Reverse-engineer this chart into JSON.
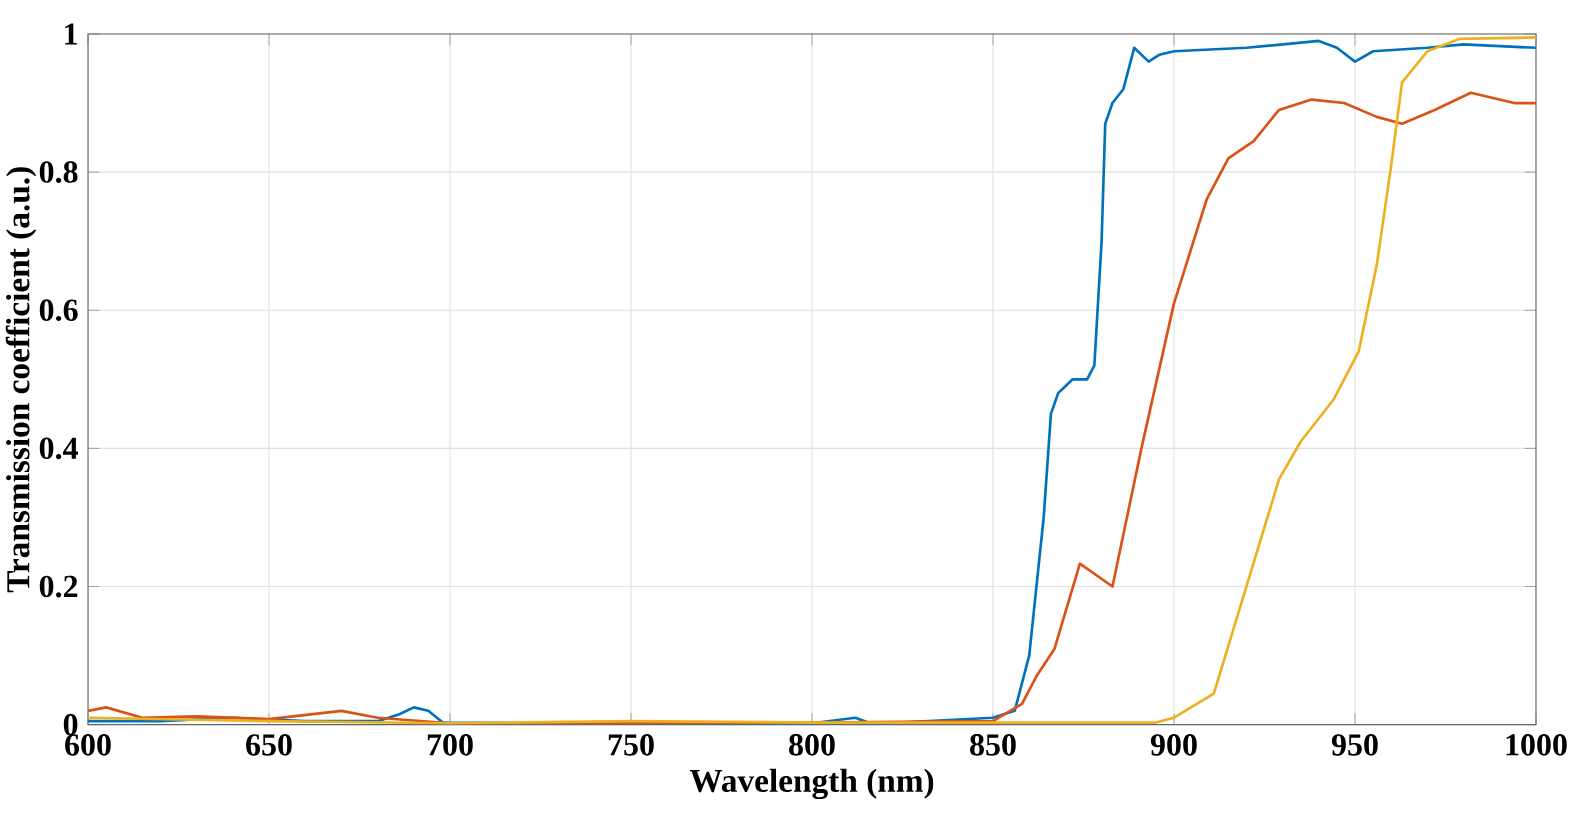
{
  "chart_data": {
    "type": "line",
    "xlabel": "Wavelength (nm)",
    "ylabel": "Transmission coefficient (a.u.)",
    "xlim": [
      600,
      1000
    ],
    "ylim": [
      0,
      1
    ],
    "xticks": [
      600,
      650,
      700,
      750,
      800,
      850,
      900,
      950,
      1000
    ],
    "yticks": [
      0,
      0.2,
      0.4,
      0.6,
      0.8,
      1
    ],
    "grid": true,
    "legend": false,
    "marker": "none",
    "line_style": "solid",
    "series": [
      {
        "color": "#0072bd",
        "x": [
          600,
          620,
          640,
          660,
          680,
          686,
          690,
          694,
          698,
          720,
          800,
          812,
          816,
          820,
          850,
          856,
          860,
          864,
          866,
          868,
          872,
          876,
          878,
          880,
          881,
          883,
          886,
          889,
          893,
          896,
          900,
          920,
          940,
          945,
          950,
          955,
          970,
          980,
          1000
        ],
        "values": [
          0.005,
          0.005,
          0.01,
          0.005,
          0.005,
          0.015,
          0.025,
          0.02,
          0.003,
          0.002,
          0.002,
          0.01,
          0.002,
          0.002,
          0.01,
          0.02,
          0.1,
          0.3,
          0.45,
          0.48,
          0.5,
          0.5,
          0.52,
          0.7,
          0.87,
          0.9,
          0.92,
          0.98,
          0.96,
          0.97,
          0.975,
          0.98,
          0.99,
          0.98,
          0.96,
          0.975,
          0.98,
          0.985,
          0.98
        ]
      },
      {
        "color": "#d95319",
        "x": [
          600,
          605,
          615,
          630,
          650,
          670,
          680,
          700,
          750,
          800,
          850,
          858,
          862,
          867,
          874,
          883,
          891,
          900,
          909,
          915,
          922,
          929,
          938,
          947,
          956,
          963,
          972,
          982,
          994,
          1000
        ],
        "values": [
          0.02,
          0.025,
          0.01,
          0.012,
          0.008,
          0.02,
          0.01,
          0.002,
          0.002,
          0.003,
          0.005,
          0.03,
          0.07,
          0.11,
          0.233,
          0.2,
          0.4,
          0.61,
          0.76,
          0.82,
          0.845,
          0.89,
          0.905,
          0.9,
          0.88,
          0.87,
          0.89,
          0.915,
          0.9,
          0.9
        ]
      },
      {
        "color": "#edb120",
        "x": [
          600,
          650,
          700,
          750,
          800,
          850,
          895,
          900,
          911,
          920,
          929,
          935,
          944,
          951,
          956,
          960,
          963,
          970,
          979,
          1000
        ],
        "values": [
          0.01,
          0.005,
          0.002,
          0.005,
          0.003,
          0.003,
          0.003,
          0.01,
          0.045,
          0.2,
          0.355,
          0.41,
          0.47,
          0.54,
          0.665,
          0.81,
          0.93,
          0.975,
          0.993,
          0.995
        ]
      }
    ]
  }
}
